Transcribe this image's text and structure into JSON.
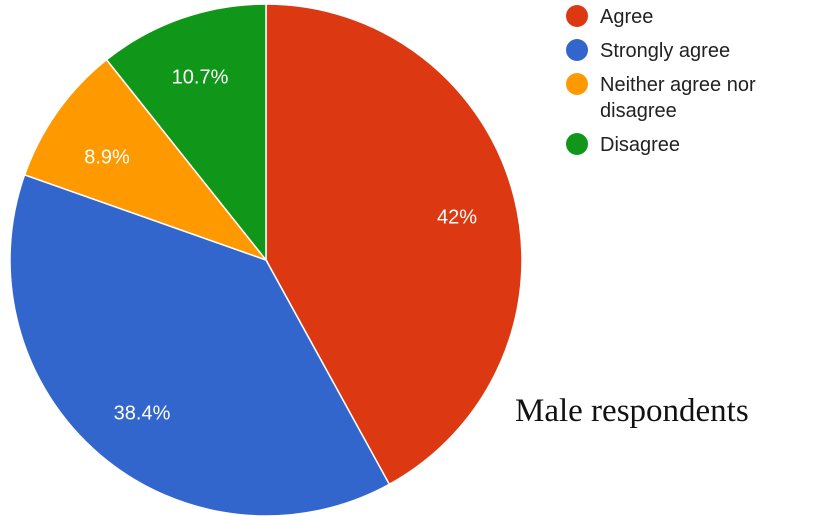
{
  "chart_data": {
    "type": "pie",
    "title": "",
    "caption": "Male respondents",
    "legend_position": "top-right",
    "slices": [
      {
        "name": "Agree",
        "value": 42,
        "label": "42%",
        "color": "#dc3912"
      },
      {
        "name": "Strongly agree",
        "value": 38.4,
        "label": "38.4%",
        "color": "#3366cc"
      },
      {
        "name": "Neither agree nor disagree",
        "value": 8.9,
        "label": "8.9%",
        "color": "#ff9900"
      },
      {
        "name": "Disagree",
        "value": 10.7,
        "label": "10.7%",
        "color": "#109618"
      }
    ]
  }
}
